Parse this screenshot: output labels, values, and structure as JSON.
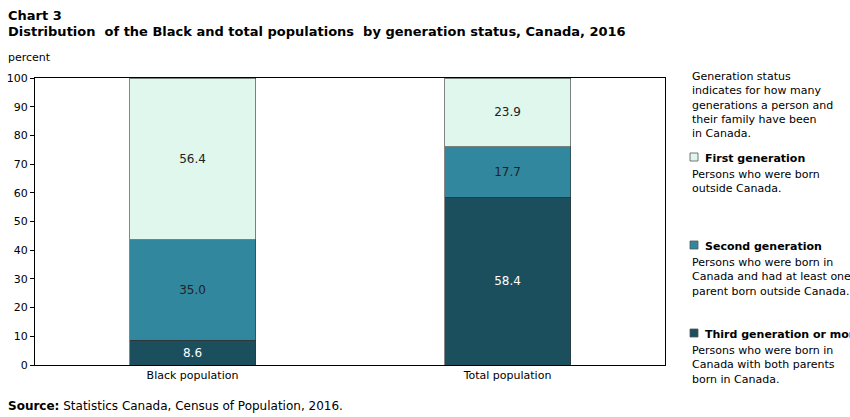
{
  "chart_data": {
    "type": "bar",
    "title": "Chart 3",
    "subtitle": "Distribution  of the Black and total populations  by generation status, Canada, 2016",
    "ylabel": "percent",
    "categories": [
      "Black population",
      "Total population"
    ],
    "series": [
      {
        "name": "Third generation or more",
        "description": "Persons who were born in Canada with both parents born in Canada.",
        "color": "#1b4f5e",
        "values": [
          8.6,
          58.4
        ],
        "value_labels": [
          "8.6",
          "58.4"
        ]
      },
      {
        "name": "Second generation",
        "description": "Persons who were born in Canada and had at least one parent born outside Canada.",
        "color": "#31879e",
        "values": [
          35.0,
          17.7
        ],
        "value_labels": [
          "35.0",
          "17.7"
        ]
      },
      {
        "name": "First generation",
        "description": "Persons who were born outside Canada.",
        "color": "#dff7ec",
        "values": [
          56.4,
          23.9
        ],
        "value_labels": [
          "56.4",
          "23.9"
        ]
      }
    ],
    "legend_note": "Generation status indicates for how many generations a person and their family have been in Canada.",
    "source_label": "Source:",
    "source": "Statistics Canada, Census of Population, 2016.",
    "ylim": [
      0,
      100
    ],
    "yticks": [
      0,
      10,
      20,
      30,
      40,
      50,
      60,
      70,
      80,
      90,
      100
    ],
    "stacked": true,
    "data_labels": true,
    "grid": false,
    "legend": "right"
  }
}
